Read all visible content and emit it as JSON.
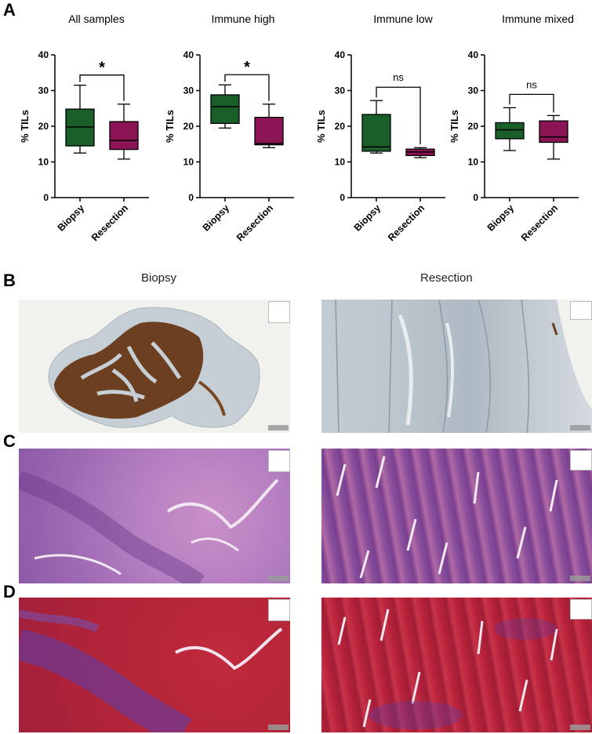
{
  "panels": {
    "a": "A",
    "b": "B",
    "c": "C",
    "d": "D"
  },
  "columns": {
    "biopsy": "Biopsy",
    "resection": "Resection"
  },
  "colors": {
    "biopsy": "#1a5e2a",
    "resection": "#8a1454"
  },
  "chart_data": [
    {
      "type": "box",
      "title": "All samples",
      "ylabel": "% TILs",
      "ylim": [
        0,
        40
      ],
      "yticks": [
        0,
        10,
        20,
        30,
        40
      ],
      "categories": [
        "Biopsy",
        "Resection"
      ],
      "boxes": [
        {
          "min": 12.5,
          "q1": 14.5,
          "median": 19.8,
          "q3": 24.8,
          "max": 31.5
        },
        {
          "min": 10.8,
          "q1": 13.5,
          "median": 16.0,
          "q3": 21.3,
          "max": 26.2
        }
      ],
      "significance": "*"
    },
    {
      "type": "box",
      "title": "Immune high",
      "ylabel": "% TILs",
      "ylim": [
        0,
        40
      ],
      "yticks": [
        0,
        10,
        20,
        30,
        40
      ],
      "categories": [
        "Biopsy",
        "Resection"
      ],
      "boxes": [
        {
          "min": 19.5,
          "q1": 20.8,
          "median": 25.5,
          "q3": 28.8,
          "max": 31.6
        },
        {
          "min": 14.0,
          "q1": 14.8,
          "median": 15.2,
          "q3": 22.5,
          "max": 26.2
        }
      ],
      "significance": "*"
    },
    {
      "type": "box",
      "title": "Immune low",
      "ylabel": "% TILs",
      "ylim": [
        0,
        40
      ],
      "yticks": [
        0,
        10,
        20,
        30,
        40
      ],
      "categories": [
        "Biopsy",
        "Resection"
      ],
      "boxes": [
        {
          "min": 12.5,
          "q1": 13.0,
          "median": 14.2,
          "q3": 23.3,
          "max": 27.2
        },
        {
          "min": 11.2,
          "q1": 11.8,
          "median": 12.8,
          "q3": 13.6,
          "max": 14.0
        }
      ],
      "significance": "ns"
    },
    {
      "type": "box",
      "title": "Immune mixed",
      "ylabel": "% TILs",
      "ylim": [
        0,
        40
      ],
      "yticks": [
        0,
        10,
        20,
        30,
        40
      ],
      "categories": [
        "Biopsy",
        "Resection"
      ],
      "boxes": [
        {
          "min": 13.2,
          "q1": 16.5,
          "median": 19.0,
          "q3": 21.0,
          "max": 25.2
        },
        {
          "min": 10.8,
          "q1": 15.5,
          "median": 17.0,
          "q3": 21.5,
          "max": 23.0
        }
      ],
      "significance": "ns"
    }
  ]
}
